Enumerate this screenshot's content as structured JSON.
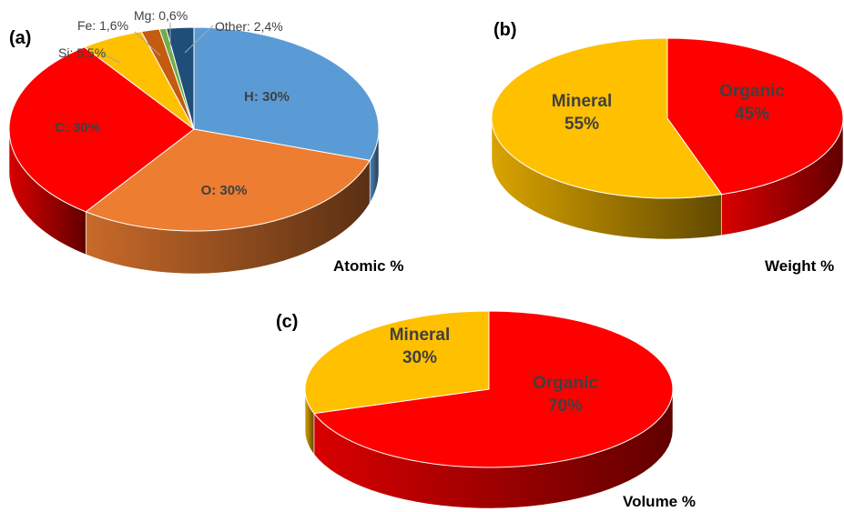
{
  "chart_data": [
    {
      "type": "pie",
      "panel": "(a)",
      "caption": "Atomic %",
      "labels": [
        "H: 30%",
        "O: 30%",
        "C: 30%",
        "Si: 5,5%",
        "Fe: 1,6%",
        "Mg: 0,6%",
        "Other: 2,4%"
      ],
      "values": [
        30,
        30,
        30,
        5.5,
        1.6,
        0.6,
        2.4
      ],
      "colors": [
        "#5b9bd5",
        "#ed7d31",
        "#ff0000",
        "#ffc000",
        "#c55a11",
        "#70ad47",
        "#1f4e79"
      ]
    },
    {
      "type": "pie",
      "panel": "(b)",
      "caption": "Weight %",
      "labels": [
        "Organic",
        "Mineral"
      ],
      "values": [
        45,
        55
      ],
      "value_labels": [
        "45%",
        "55%"
      ],
      "colors": [
        "#ff0000",
        "#ffc000"
      ]
    },
    {
      "type": "pie",
      "panel": "(c)",
      "caption": "Volume %",
      "labels": [
        "Organic",
        "Mineral"
      ],
      "values": [
        70,
        30
      ],
      "value_labels": [
        "70%",
        "30%"
      ],
      "colors": [
        "#ff0000",
        "#ffc000"
      ]
    }
  ]
}
